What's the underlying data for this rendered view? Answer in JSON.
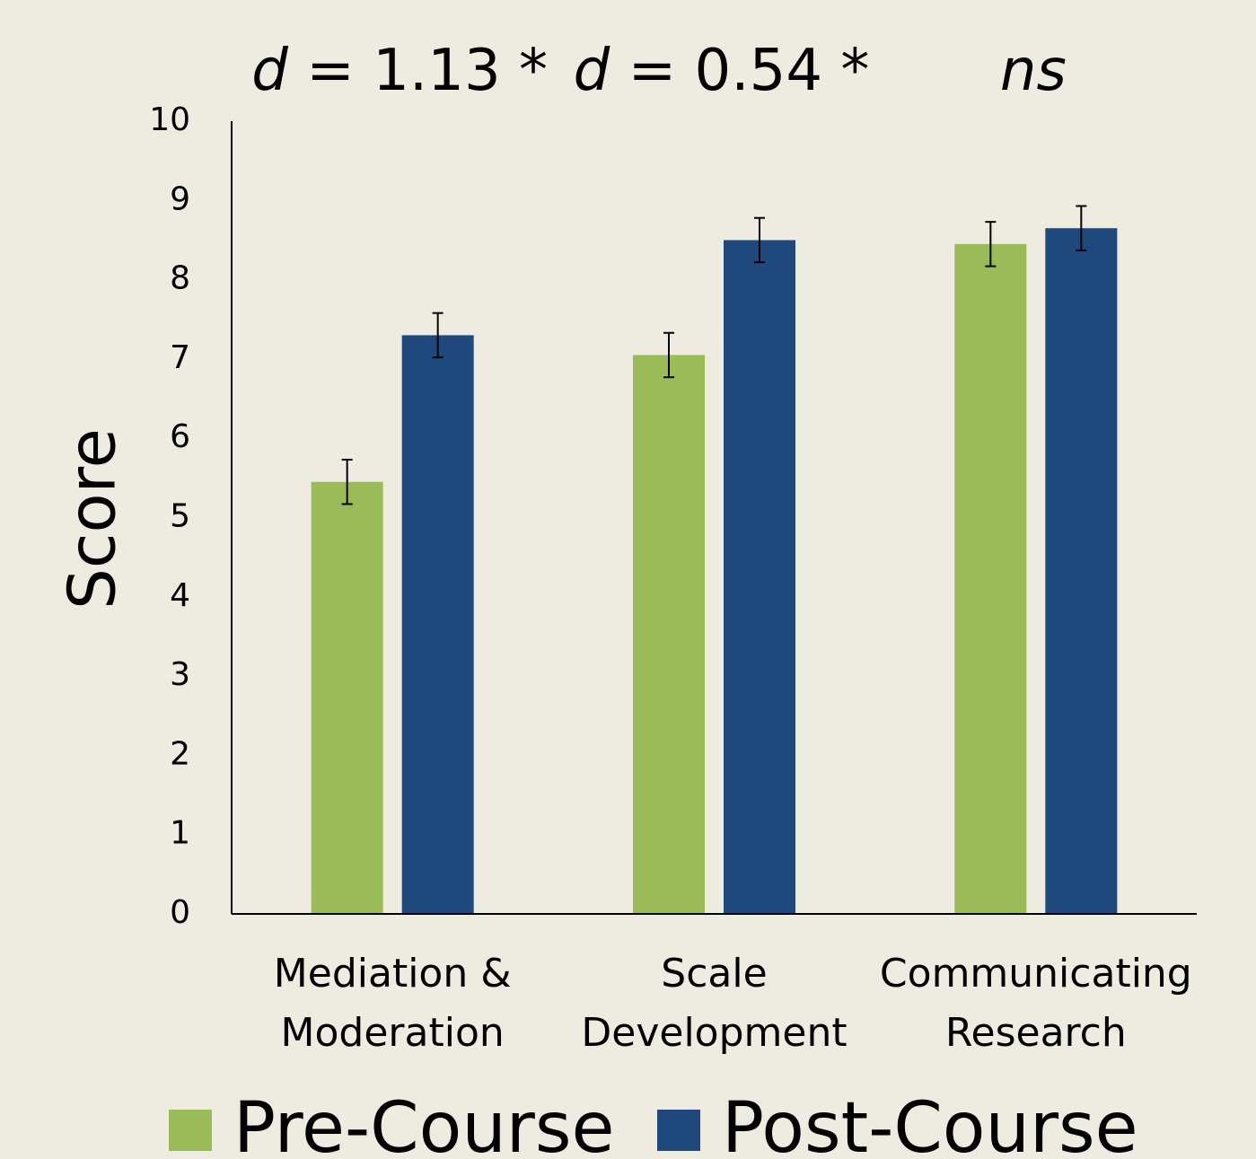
{
  "chart_data": {
    "type": "bar",
    "annotations": [
      {
        "symbol": "d",
        "text": "= 1.13 *"
      },
      {
        "symbol": "d",
        "text": "= 0.54 *"
      },
      {
        "symbol": "ns"
      }
    ],
    "ylabel": "Score",
    "categories": [
      [
        "Mediation &",
        "Moderation"
      ],
      [
        "Scale",
        "Development"
      ],
      [
        "Communicating",
        "Research"
      ]
    ],
    "series": [
      {
        "name": "Pre-Course",
        "color": "#9bbb59",
        "values": [
          5.45,
          7.05,
          8.45
        ],
        "errors": [
          0.28,
          0.28,
          0.28
        ]
      },
      {
        "name": "Post-Course",
        "color": "#1f497d",
        "values": [
          7.3,
          8.5,
          8.65
        ],
        "errors": [
          0.28,
          0.28,
          0.28
        ]
      }
    ],
    "ylim": [
      0,
      10
    ],
    "yticks": [
      0,
      1,
      2,
      3,
      4,
      5,
      6,
      7,
      8,
      9,
      10
    ],
    "grid": false,
    "legend": "bottom"
  }
}
